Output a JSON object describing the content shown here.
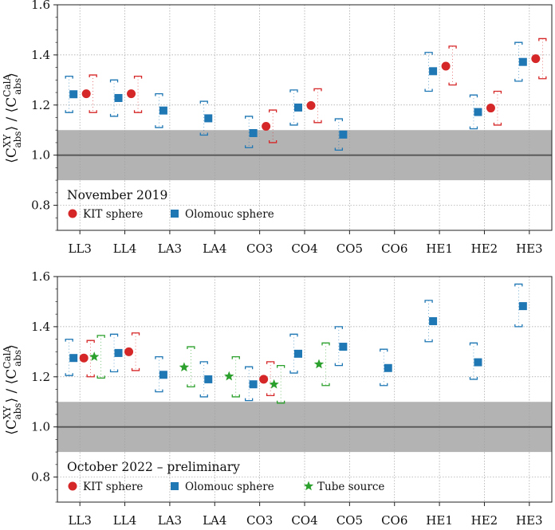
{
  "colors": {
    "kit": "#d62728",
    "olomouc": "#1f77b4",
    "tube": "#2ca02c",
    "band": "#b3b3b3",
    "refline": "#555555"
  },
  "ylabel": {
    "main": "C",
    "sup": "XY",
    "sub": "abs",
    "denom_sup": "CalA",
    "denom_sub": "abs"
  },
  "chart_data": [
    {
      "type": "scatter",
      "title": "November 2019",
      "categories": [
        "LL3",
        "LL4",
        "LA3",
        "LA4",
        "CO3",
        "CO4",
        "CO5",
        "CO6",
        "HE1",
        "HE2",
        "HE3"
      ],
      "ylim": [
        0.7,
        1.6
      ],
      "yticks": [
        0.8,
        1.0,
        1.2,
        1.4,
        1.6
      ],
      "tick_labels": [
        "0.8",
        "1.0",
        "1.2",
        "1.4",
        "1.6"
      ],
      "band": [
        0.9,
        1.1
      ],
      "refline": 1.0,
      "grid": true,
      "legend_placement": "lower-left",
      "series": [
        {
          "name": "KIT sphere",
          "marker": "circle",
          "color_key": "kit",
          "values": [
            1.245,
            1.245,
            null,
            null,
            1.115,
            1.198,
            null,
            null,
            1.355,
            1.188,
            1.385
          ],
          "lower": [
            1.17,
            1.17,
            null,
            null,
            1.05,
            1.13,
            null,
            null,
            1.28,
            1.12,
            1.305
          ],
          "upper": [
            1.32,
            1.315,
            null,
            null,
            1.18,
            1.265,
            null,
            null,
            1.435,
            1.255,
            1.465
          ]
        },
        {
          "name": "Olomouc sphere",
          "marker": "square",
          "color_key": "olomouc",
          "values": [
            1.243,
            1.228,
            1.178,
            1.147,
            1.088,
            1.19,
            1.082,
            null,
            1.335,
            1.172,
            1.372
          ],
          "lower": [
            1.17,
            1.155,
            1.11,
            1.08,
            1.03,
            1.12,
            1.02,
            null,
            1.255,
            1.105,
            1.295
          ],
          "upper": [
            1.315,
            1.3,
            1.245,
            1.215,
            1.155,
            1.26,
            1.145,
            null,
            1.41,
            1.24,
            1.45
          ]
        }
      ]
    },
    {
      "type": "scatter",
      "title": "October 2022 – preliminary",
      "categories": [
        "LL3",
        "LL4",
        "LA3",
        "LA4",
        "CO3",
        "CO4",
        "CO5",
        "CO6",
        "HE1",
        "HE2",
        "HE3"
      ],
      "ylim": [
        0.7,
        1.6
      ],
      "yticks": [
        0.8,
        1.0,
        1.2,
        1.4,
        1.6
      ],
      "tick_labels": [
        "0.8",
        "1.0",
        "1.2",
        "1.4",
        "1.6"
      ],
      "band": [
        0.9,
        1.1
      ],
      "refline": 1.0,
      "grid": true,
      "legend_placement": "lower-left",
      "series": [
        {
          "name": "KIT sphere",
          "marker": "circle",
          "color_key": "kit",
          "values": [
            1.275,
            1.3,
            null,
            null,
            1.19,
            null,
            null,
            null,
            null,
            null,
            null
          ],
          "lower": [
            1.2,
            1.225,
            null,
            null,
            1.125,
            null,
            null,
            null,
            null,
            null,
            null
          ],
          "upper": [
            1.345,
            1.375,
            null,
            null,
            1.26,
            null,
            null,
            null,
            null,
            null,
            null
          ]
        },
        {
          "name": "Olomouc sphere",
          "marker": "square",
          "color_key": "olomouc",
          "values": [
            1.275,
            1.295,
            1.208,
            1.19,
            1.17,
            1.292,
            1.32,
            1.235,
            1.422,
            1.258,
            1.482
          ],
          "lower": [
            1.205,
            1.22,
            1.14,
            1.12,
            1.105,
            1.215,
            1.245,
            1.165,
            1.34,
            1.19,
            1.4
          ],
          "upper": [
            1.35,
            1.37,
            1.28,
            1.26,
            1.24,
            1.37,
            1.4,
            1.31,
            1.505,
            1.335,
            1.57
          ]
        },
        {
          "name": "Tube source",
          "marker": "star",
          "color_key": "tube",
          "values": [
            1.28,
            null,
            1.238,
            1.202,
            1.17,
            1.25,
            null,
            null,
            null,
            null,
            null
          ],
          "lower": [
            1.195,
            null,
            1.16,
            1.12,
            1.095,
            1.165,
            null,
            null,
            null,
            null,
            null
          ],
          "upper": [
            1.365,
            null,
            1.32,
            1.28,
            1.245,
            1.335,
            null,
            null,
            null,
            null,
            null
          ]
        }
      ]
    }
  ]
}
